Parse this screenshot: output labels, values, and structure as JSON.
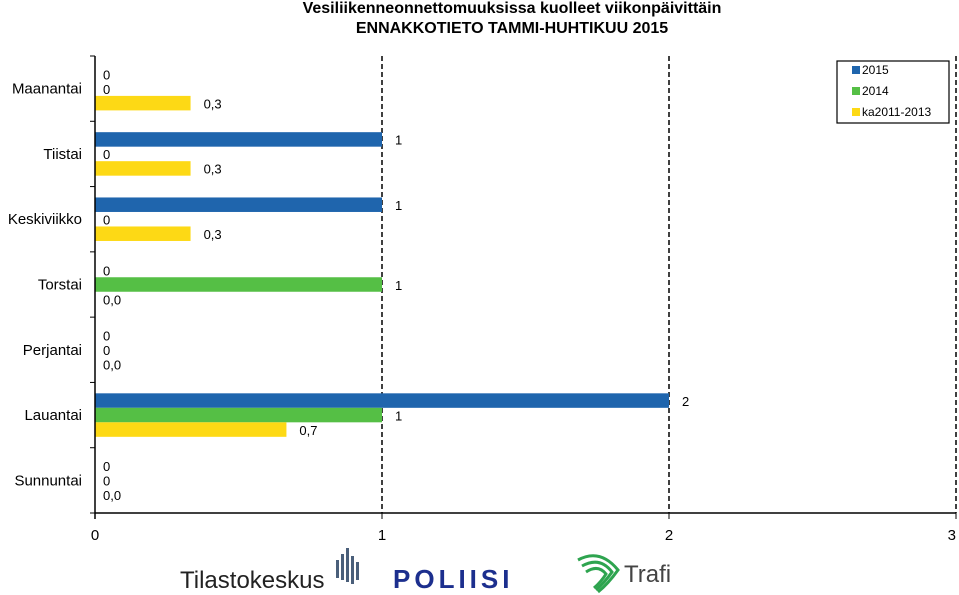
{
  "chart_data": {
    "type": "bar",
    "orientation": "horizontal",
    "title": "Vesiliikenneonnettomuuksissa kuolleet viikonpäivittäin",
    "subtitle": "ENNAKKOTIETO TAMMI-HUHTIKUU 2015",
    "categories": [
      "Maanantai",
      "Tiistai",
      "Keskiviikko",
      "Torstai",
      "Perjantai",
      "Lauantai",
      "Sunnuntai"
    ],
    "series": [
      {
        "name": "2015",
        "color": "#1f65ad",
        "values": [
          0,
          1,
          1,
          0,
          0,
          2,
          0
        ],
        "labels": [
          "0",
          "1",
          "1",
          "0",
          "0",
          "2",
          "0"
        ]
      },
      {
        "name": "2014",
        "color": "#55bf45",
        "values": [
          0,
          0,
          0,
          1,
          0,
          1,
          0
        ],
        "labels": [
          "0",
          "0",
          "0",
          "1",
          "0",
          "1",
          "0"
        ]
      },
      {
        "name": "ka2011-2013",
        "color": "#fdd915",
        "values": [
          0.333,
          0.333,
          0.333,
          0.0,
          0.0,
          0.667,
          0.0
        ],
        "labels": [
          "0,3",
          "0,3",
          "0,3",
          "0,0",
          "0,0",
          "0,7",
          "0,0"
        ]
      }
    ],
    "xlim": [
      0,
      3
    ],
    "xticks": [
      "0",
      "1",
      "2",
      "3"
    ],
    "grid": "dashed vertical",
    "legend": "top-right"
  },
  "logos": {
    "tilastokeskus": "Tilastokeskus",
    "poliisi": "POLIISI",
    "trafi": "Trafi"
  }
}
